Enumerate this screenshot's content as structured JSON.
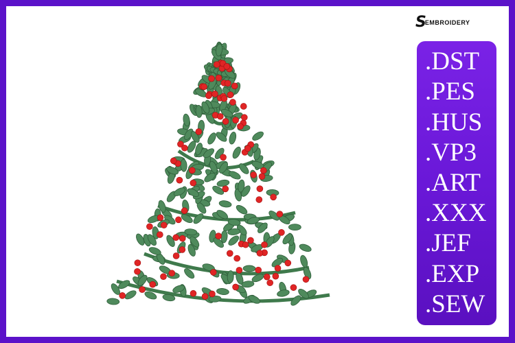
{
  "brand": {
    "logo_text": "EMBROIDERY",
    "logo_mark": "E"
  },
  "formats": [
    ".DST",
    ".PES",
    ".HUS",
    ".VP3",
    ".ART",
    ".XXX",
    ".JEF",
    ".EXP",
    ".SEW"
  ],
  "colors": {
    "border": "#5b12c9",
    "panel": "#6a18d8",
    "leaf": "#4f8a5c",
    "berry": "#e02525",
    "garland": "#3f7a4c"
  },
  "image": {
    "subject": "holly-christmas-tree-icon"
  }
}
